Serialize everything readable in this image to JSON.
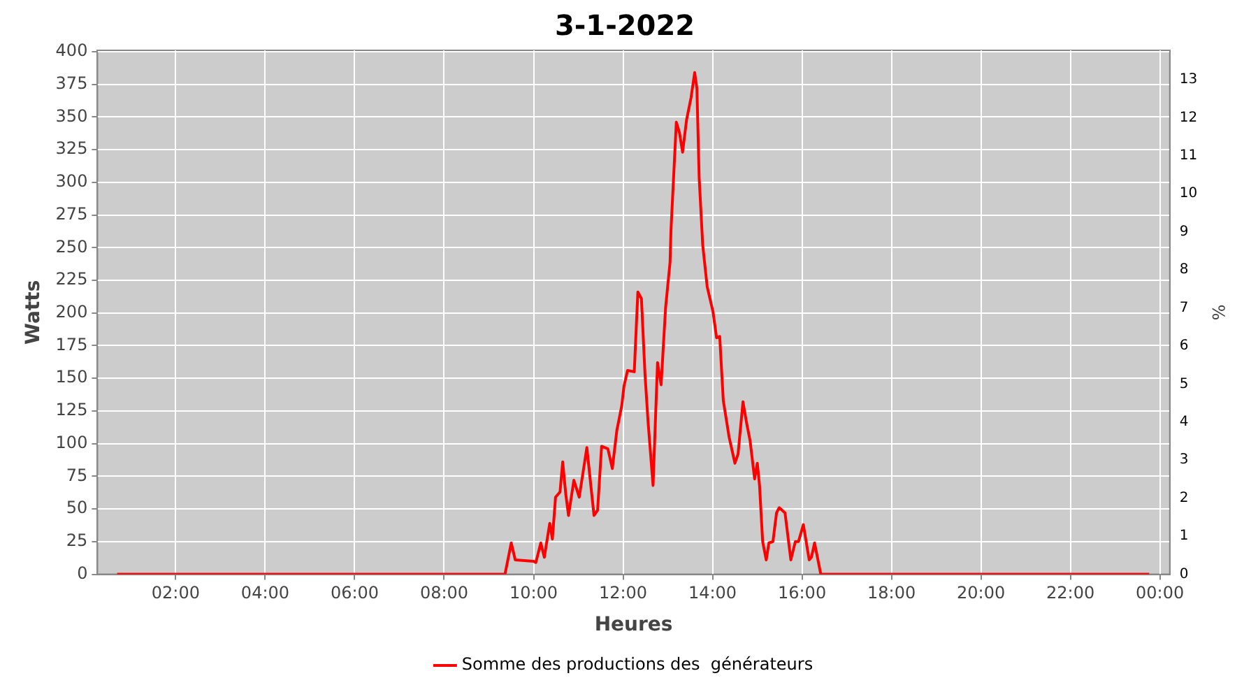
{
  "chart_data": {
    "type": "line",
    "title": "3-1-2022",
    "xlabel": "Heures",
    "ylabel": "Watts",
    "y2label": "%",
    "xlim": [
      0.25,
      24.22
    ],
    "xticks": [
      {
        "value": 2,
        "label": "02:00"
      },
      {
        "value": 4,
        "label": "04:00"
      },
      {
        "value": 6,
        "label": "06:00"
      },
      {
        "value": 8,
        "label": "08:00"
      },
      {
        "value": 10,
        "label": "10:00"
      },
      {
        "value": 12,
        "label": "12:00"
      },
      {
        "value": 14,
        "label": "14:00"
      },
      {
        "value": 16,
        "label": "16:00"
      },
      {
        "value": 18,
        "label": "18:00"
      },
      {
        "value": 20,
        "label": "20:00"
      },
      {
        "value": 22,
        "label": "22:00"
      },
      {
        "value": 24,
        "label": "00:00"
      }
    ],
    "ylim": [
      0,
      401
    ],
    "yticks": [
      0,
      25,
      50,
      75,
      100,
      125,
      150,
      175,
      200,
      225,
      250,
      275,
      300,
      325,
      350,
      375,
      400
    ],
    "y2lim": [
      0,
      13.77
    ],
    "y2ticks": [
      0,
      1,
      2,
      3,
      4,
      5,
      6,
      7,
      8,
      9,
      10,
      11,
      12,
      13
    ],
    "grid": true,
    "legend": "bottom",
    "marker": "none",
    "line_style": "solid",
    "series": [
      {
        "name": "Somme des productions des  générateurs",
        "color": "#ff0000",
        "x": [
          0.69,
          3,
          6,
          9,
          9.36,
          9.5,
          9.59,
          10.0,
          10.05,
          10.16,
          10.24,
          10.36,
          10.42,
          10.49,
          10.59,
          10.65,
          10.72,
          10.78,
          10.9,
          11.02,
          11.19,
          11.35,
          11.43,
          11.52,
          11.66,
          11.76,
          11.86,
          11.97,
          12.02,
          12.1,
          12.25,
          12.33,
          12.41,
          12.49,
          12.56,
          12.67,
          12.77,
          12.85,
          12.95,
          13.05,
          13.07,
          13.19,
          13.26,
          13.33,
          13.42,
          13.52,
          13.6,
          13.65,
          13.7,
          13.78,
          13.88,
          14.01,
          14.09,
          14.16,
          14.24,
          14.37,
          14.5,
          14.57,
          14.68,
          14.76,
          14.84,
          14.94,
          15.0,
          15.05,
          15.12,
          15.2,
          15.26,
          15.35,
          15.43,
          15.49,
          15.62,
          15.75,
          15.85,
          15.92,
          16.03,
          16.16,
          16.21,
          16.28,
          16.42,
          18,
          20,
          22,
          23.76
        ],
        "values": [
          0,
          0,
          0,
          0,
          0,
          24,
          11,
          10,
          9,
          24,
          13,
          39,
          27,
          59,
          63,
          86,
          61,
          45,
          72,
          59,
          97,
          45,
          49,
          98,
          96,
          81,
          110,
          129,
          144,
          156,
          155,
          216,
          211,
          153,
          116,
          68,
          162,
          145,
          204,
          239,
          263,
          346,
          338,
          323,
          348,
          365,
          384,
          372,
          304,
          252,
          220,
          201,
          181,
          182,
          133,
          105,
          85,
          92,
          132,
          116,
          102,
          73,
          85,
          68,
          25,
          11,
          24,
          25,
          47,
          51,
          47,
          11,
          25,
          25,
          38,
          11,
          13,
          24,
          0,
          0,
          0,
          0,
          0
        ]
      }
    ]
  }
}
